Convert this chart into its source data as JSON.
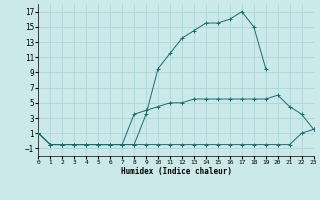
{
  "xlabel": "Humidex (Indice chaleur)",
  "xlim": [
    0,
    23
  ],
  "ylim": [
    -2,
    18
  ],
  "xticks": [
    0,
    1,
    2,
    3,
    4,
    5,
    6,
    7,
    8,
    9,
    10,
    11,
    12,
    13,
    14,
    15,
    16,
    17,
    18,
    19,
    20,
    21,
    22,
    23
  ],
  "yticks": [
    -1,
    1,
    3,
    5,
    7,
    9,
    11,
    13,
    15,
    17
  ],
  "bg_color": "#cce9e9",
  "line_color": "#1a6b6b",
  "grid_color": "#aad8d8",
  "line1_x": [
    0,
    1,
    2,
    3,
    4,
    5,
    6,
    7,
    8,
    9,
    10,
    11,
    12,
    13,
    14,
    15,
    16,
    17,
    18,
    19
  ],
  "line1_y": [
    1,
    -0.5,
    -0.5,
    -0.5,
    -0.5,
    -0.5,
    -0.5,
    -0.5,
    -0.5,
    3.5,
    9.5,
    11.5,
    13.5,
    14.5,
    15.5,
    15.5,
    16.0,
    17.0,
    15.0,
    9.5
  ],
  "line2_x": [
    0,
    1,
    2,
    3,
    4,
    5,
    6,
    7,
    8,
    9,
    10,
    11,
    12,
    13,
    14,
    15,
    16,
    17,
    18,
    19,
    20,
    21,
    22,
    23
  ],
  "line2_y": [
    1,
    -0.5,
    -0.5,
    -0.5,
    -0.5,
    -0.5,
    -0.5,
    -0.5,
    3.5,
    4.0,
    4.5,
    5.0,
    5.0,
    5.5,
    5.5,
    5.5,
    5.5,
    5.5,
    5.5,
    5.5,
    6.0,
    4.5,
    3.5,
    1.5
  ],
  "line3_x": [
    0,
    1,
    2,
    3,
    4,
    5,
    6,
    7,
    8,
    9,
    10,
    11,
    12,
    13,
    14,
    15,
    16,
    17,
    18,
    19,
    20,
    21,
    22,
    23
  ],
  "line3_y": [
    1,
    -0.5,
    -0.5,
    -0.5,
    -0.5,
    -0.5,
    -0.5,
    -0.5,
    -0.5,
    -0.5,
    -0.5,
    -0.5,
    -0.5,
    -0.5,
    -0.5,
    -0.5,
    -0.5,
    -0.5,
    -0.5,
    -0.5,
    -0.5,
    -0.5,
    1.0,
    1.5
  ]
}
